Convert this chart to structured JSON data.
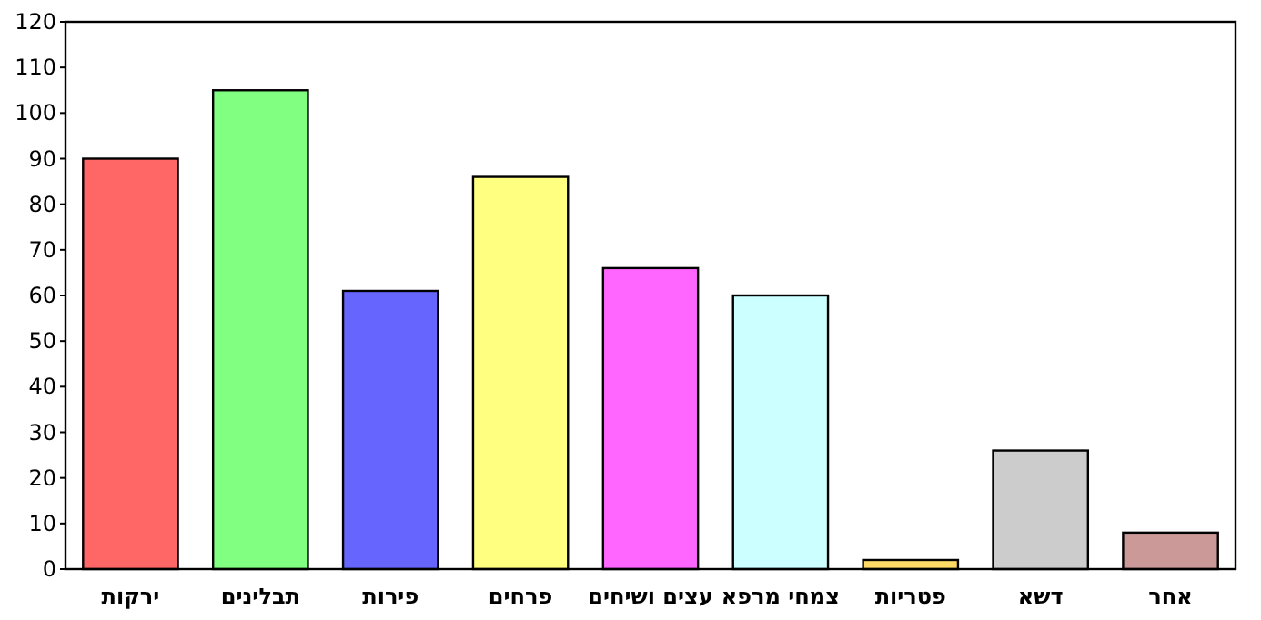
{
  "chart_data": {
    "type": "bar",
    "categories": [
      "ירקות",
      "תבלינים",
      "פירות",
      "פרחים",
      "עצים ושיחים",
      "צמחי מרפא",
      "פטריות",
      "דשא",
      "אחר"
    ],
    "values": [
      90,
      105,
      61,
      86,
      66,
      60,
      2,
      26,
      8
    ],
    "colors": [
      "#ff6666",
      "#80ff80",
      "#6666ff",
      "#ffff80",
      "#ff66ff",
      "#ccffff",
      "#ffd966",
      "#cccccc",
      "#cc9999"
    ],
    "ylim": [
      0,
      120
    ],
    "yticks": [
      0,
      10,
      20,
      30,
      40,
      50,
      60,
      70,
      80,
      90,
      100,
      110,
      120
    ]
  }
}
